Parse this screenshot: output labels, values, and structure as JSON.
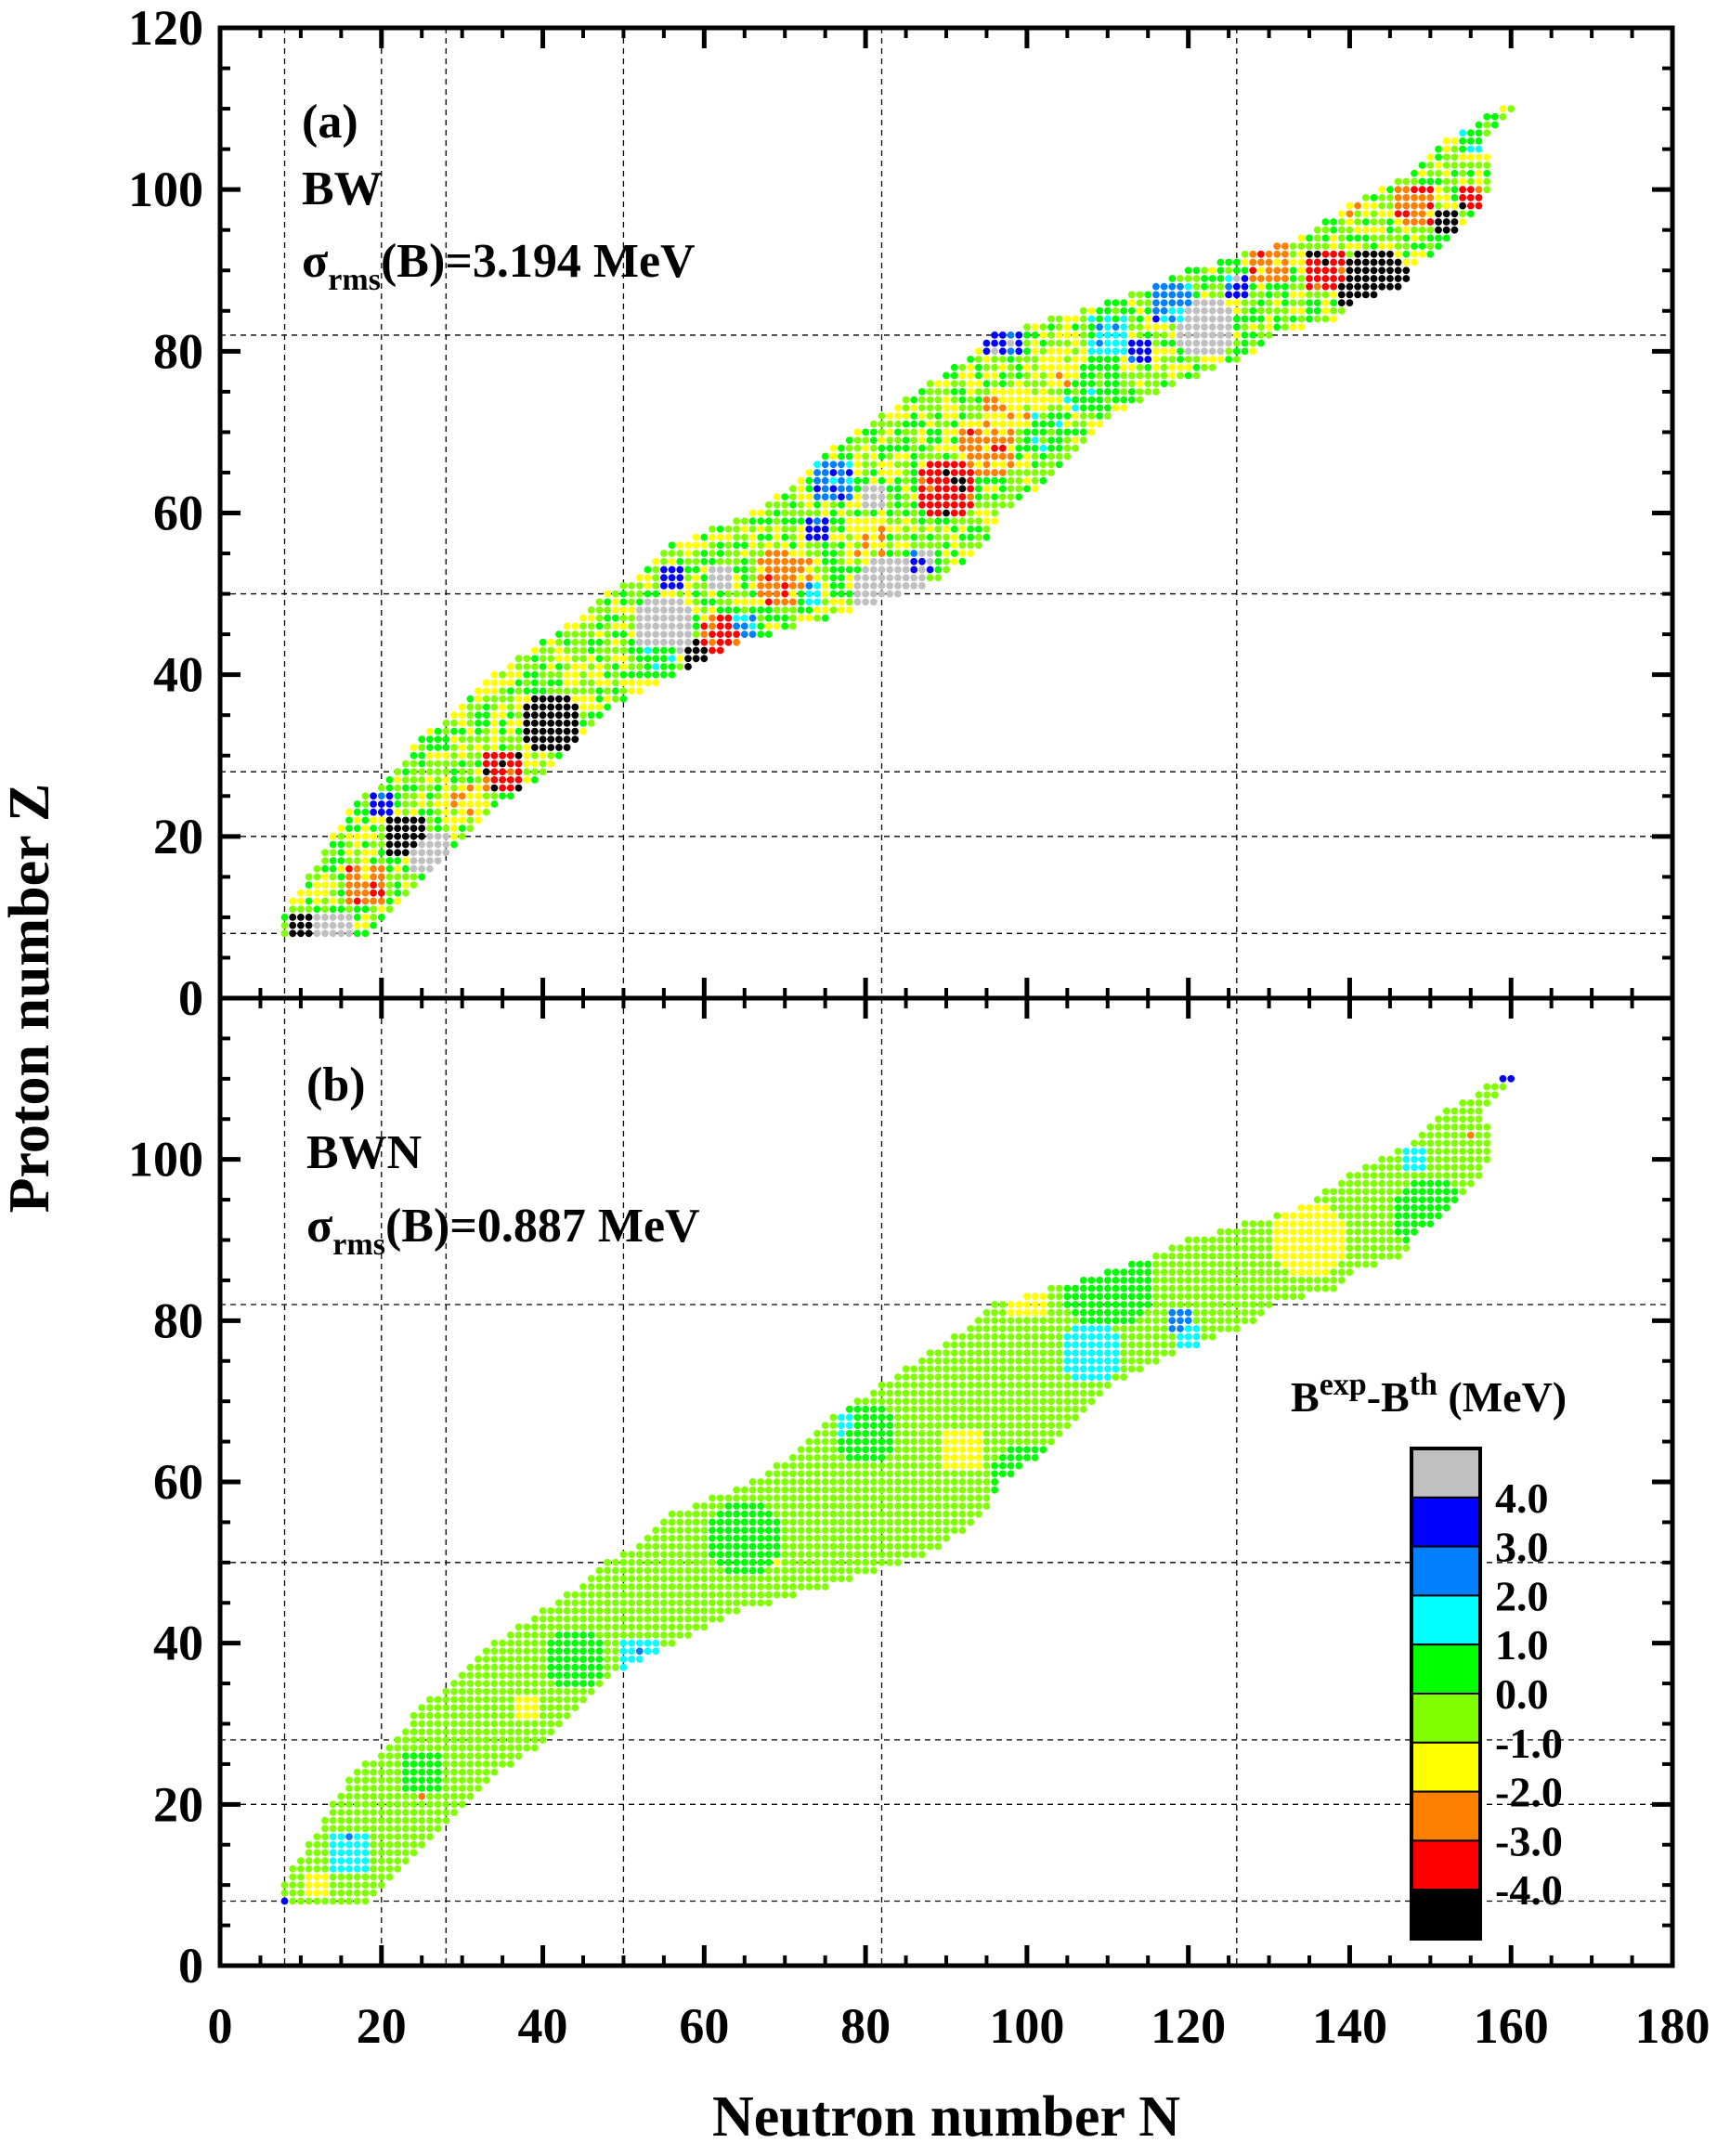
{
  "chart_data": {
    "type": "scatter",
    "xlabel": "Neutron number N",
    "ylabel": "Proton number Z",
    "xlim": [
      0,
      180
    ],
    "x_ticks": [
      "0",
      "20",
      "40",
      "60",
      "80",
      "100",
      "120",
      "140",
      "160",
      "180"
    ],
    "panels": [
      {
        "label": "(a)",
        "model": "BW",
        "sigma_symbol": "σ",
        "sigma_sub": "rms",
        "sigma_rest": "(B)=3.194 MeV",
        "ylim": [
          0,
          120
        ],
        "y_ticks": [
          "0",
          "20",
          "40",
          "60",
          "80",
          "100",
          "120"
        ],
        "base_value": -0.5,
        "noise": 1.2,
        "patches": [
          {
            "n": 10,
            "z": 9,
            "r": 2,
            "v": -5
          },
          {
            "n": 23,
            "z": 20,
            "r": 3,
            "v": -5
          },
          {
            "n": 41,
            "z": 34,
            "r": 4,
            "v": -5
          },
          {
            "n": 60,
            "z": 42,
            "r": 2.5,
            "v": -5
          },
          {
            "n": 143,
            "z": 88,
            "r": 5,
            "v": -5
          },
          {
            "n": 152,
            "z": 96,
            "r": 2,
            "v": -5
          },
          {
            "n": 35,
            "z": 28,
            "r": 3,
            "v": -3.5
          },
          {
            "n": 63,
            "z": 44,
            "r": 4,
            "v": -3.5
          },
          {
            "n": 90,
            "z": 63,
            "r": 4,
            "v": -3.5
          },
          {
            "n": 137,
            "z": 90,
            "r": 3,
            "v": -3.5
          },
          {
            "n": 155,
            "z": 99,
            "r": 2,
            "v": -3.5
          },
          {
            "n": 70,
            "z": 52,
            "r": 4,
            "v": -2.5
          },
          {
            "n": 95,
            "z": 68,
            "r": 4,
            "v": -2.5
          },
          {
            "n": 130,
            "z": 91,
            "r": 3,
            "v": -2.5
          },
          {
            "n": 148,
            "z": 98,
            "r": 3,
            "v": -2.5
          },
          {
            "n": 18,
            "z": 14,
            "r": 3,
            "v": -2.5
          },
          {
            "n": 98,
            "z": 72,
            "r": 4,
            "v": -1.5
          },
          {
            "n": 105,
            "z": 78,
            "r": 3,
            "v": -1.5
          },
          {
            "n": 30,
            "z": 24,
            "r": 3,
            "v": -1.5
          },
          {
            "n": 80,
            "z": 57,
            "r": 3,
            "v": -1.5
          },
          {
            "n": 140,
            "z": 97,
            "r": 2,
            "v": -1.5
          },
          {
            "n": 14,
            "z": 8,
            "r": 3,
            "v": 5
          },
          {
            "n": 26,
            "z": 18,
            "r": 3,
            "v": 5
          },
          {
            "n": 50,
            "z": 32,
            "r": 3,
            "v": 5
          },
          {
            "n": 55,
            "z": 46,
            "r": 4,
            "v": 5
          },
          {
            "n": 83,
            "z": 50,
            "r": 5,
            "v": 5
          },
          {
            "n": 122,
            "z": 83,
            "r": 4,
            "v": 5
          },
          {
            "n": 81,
            "z": 62,
            "r": 2,
            "v": 5
          },
          {
            "n": 62,
            "z": 52,
            "r": 2,
            "v": 5
          },
          {
            "n": 20,
            "z": 24,
            "r": 2,
            "v": 3.5
          },
          {
            "n": 74,
            "z": 58,
            "r": 2,
            "v": 3.5
          },
          {
            "n": 114,
            "z": 80,
            "r": 2,
            "v": 3.5
          },
          {
            "n": 87,
            "z": 54,
            "r": 2,
            "v": 3.5
          },
          {
            "n": 97,
            "z": 82,
            "r": 3,
            "v": 3.5
          },
          {
            "n": 126,
            "z": 88,
            "r": 2,
            "v": 3.5
          },
          {
            "n": 56,
            "z": 52,
            "r": 2,
            "v": 3.5
          },
          {
            "n": 76,
            "z": 64,
            "r": 3,
            "v": 2.5
          },
          {
            "n": 118,
            "z": 86,
            "r": 3,
            "v": 2.5
          },
          {
            "n": 45,
            "z": 28,
            "r": 2,
            "v": 2.5
          },
          {
            "n": 65,
            "z": 46,
            "r": 2,
            "v": 2.5
          },
          {
            "n": 73,
            "z": 50,
            "r": 2,
            "v": 1.5
          },
          {
            "n": 110,
            "z": 82,
            "r": 3,
            "v": 1.5
          },
          {
            "n": 60,
            "z": 32,
            "r": 2,
            "v": 1.5
          },
          {
            "n": 108,
            "z": 76,
            "r": 4,
            "v": 0.5
          },
          {
            "n": 102,
            "z": 70,
            "r": 3,
            "v": 0.5
          },
          {
            "n": 125,
            "z": 90,
            "r": 2,
            "v": 0.5
          },
          {
            "n": 54,
            "z": 42,
            "r": 3,
            "v": 0.5
          },
          {
            "n": 156,
            "z": 107,
            "r": 3,
            "v": 0.5
          }
        ]
      },
      {
        "label": "(b)",
        "model": "BWN",
        "sigma_symbol": "σ",
        "sigma_sub": "rms",
        "sigma_rest": "(B)=0.887 MeV",
        "ylim": [
          0,
          120
        ],
        "y_ticks": [
          "0",
          "20",
          "40",
          "60",
          "80",
          "100"
        ],
        "base_value": -0.5,
        "noise": 0.5,
        "patches": [
          {
            "n": 110,
            "z": 85,
            "r": 6,
            "v": 0.5
          },
          {
            "n": 150,
            "z": 93,
            "r": 5,
            "v": 0.5
          },
          {
            "n": 65,
            "z": 53,
            "r": 5,
            "v": 0.5
          },
          {
            "n": 44,
            "z": 38,
            "r": 4,
            "v": 0.5
          },
          {
            "n": 100,
            "z": 60,
            "r": 5,
            "v": 0.5
          },
          {
            "n": 80,
            "z": 66,
            "r": 4,
            "v": 0.5
          },
          {
            "n": 25,
            "z": 24,
            "r": 3,
            "v": 0.5
          },
          {
            "n": 16,
            "z": 16,
            "r": 1,
            "v": 2.5
          },
          {
            "n": 119,
            "z": 80,
            "r": 1.5,
            "v": 2.5
          },
          {
            "n": 52,
            "z": 39,
            "r": 1,
            "v": 2.5
          },
          {
            "n": 52,
            "z": 38,
            "r": 3,
            "v": 1.5
          },
          {
            "n": 108,
            "z": 76,
            "r": 4,
            "v": 1.5
          },
          {
            "n": 120,
            "z": 78,
            "r": 2,
            "v": 1.5
          },
          {
            "n": 16,
            "z": 14,
            "r": 3,
            "v": 1.5
          },
          {
            "n": 37,
            "z": 20,
            "r": 2,
            "v": 1.5
          },
          {
            "n": 78,
            "z": 67,
            "r": 2,
            "v": 1.5
          },
          {
            "n": 148,
            "z": 100,
            "r": 2,
            "v": 1.5
          },
          {
            "n": 135,
            "z": 90,
            "r": 5,
            "v": -1.5
          },
          {
            "n": 92,
            "z": 64,
            "r": 3,
            "v": -1.5
          },
          {
            "n": 38,
            "z": 32,
            "r": 2,
            "v": -1.5
          },
          {
            "n": 12,
            "z": 10,
            "r": 2,
            "v": -1.5
          },
          {
            "n": 69,
            "z": 50,
            "r": 1,
            "v": -1.5
          },
          {
            "n": 60,
            "z": 40,
            "r": 1,
            "v": -1.5
          },
          {
            "n": 100,
            "z": 83,
            "r": 3,
            "v": -1.5
          },
          {
            "n": 155,
            "z": 103,
            "r": 1,
            "v": -2.5
          },
          {
            "n": 25,
            "z": 21,
            "r": 1,
            "v": -2.5
          },
          {
            "n": 160,
            "z": 110,
            "r": 1.2,
            "v": 3.5
          },
          {
            "n": 8,
            "z": 8,
            "r": 0.8,
            "v": 3.5
          }
        ]
      }
    ],
    "nuclide_band_rows_Z_Nmin_Nmax": [
      [
        8,
        8,
        18
      ],
      [
        10,
        8,
        20
      ],
      [
        12,
        9,
        22
      ],
      [
        16,
        12,
        26
      ],
      [
        20,
        14,
        30
      ],
      [
        24,
        17,
        34
      ],
      [
        28,
        22,
        40
      ],
      [
        32,
        25,
        44
      ],
      [
        36,
        30,
        48
      ],
      [
        40,
        34,
        56
      ],
      [
        44,
        40,
        64
      ],
      [
        48,
        46,
        78
      ],
      [
        50,
        48,
        84
      ],
      [
        52,
        52,
        89
      ],
      [
        56,
        56,
        94
      ],
      [
        60,
        66,
        96
      ],
      [
        64,
        72,
        102
      ],
      [
        68,
        76,
        106
      ],
      [
        72,
        82,
        110
      ],
      [
        76,
        88,
        118
      ],
      [
        80,
        94,
        128
      ],
      [
        82,
        96,
        130
      ],
      [
        84,
        103,
        138
      ],
      [
        86,
        110,
        140
      ],
      [
        88,
        116,
        146
      ],
      [
        90,
        120,
        147
      ],
      [
        94,
        134,
        152
      ],
      [
        98,
        140,
        156
      ],
      [
        102,
        148,
        157
      ],
      [
        106,
        152,
        156
      ],
      [
        110,
        159,
        160
      ]
    ],
    "magic_numbers": [
      8,
      20,
      28,
      50,
      82,
      126
    ],
    "colorbar": {
      "title_main": "B",
      "title_sup1": "exp",
      "title_mid": "-B",
      "title_sup2": "th",
      "title_unit": " (MeV)",
      "bins": [
        {
          "min": 4,
          "color": "#c0c0c0"
        },
        {
          "min": 3,
          "color": "#0000ff"
        },
        {
          "min": 2,
          "color": "#0080ff"
        },
        {
          "min": 1,
          "color": "#00ffff"
        },
        {
          "min": 0,
          "color": "#00ff00"
        },
        {
          "min": -1,
          "color": "#80ff00"
        },
        {
          "min": -2,
          "color": "#ffff00"
        },
        {
          "min": -3,
          "color": "#ff8000"
        },
        {
          "min": -4,
          "color": "#ff0000"
        },
        {
          "min": -999,
          "color": "#000000"
        }
      ],
      "tick_labels": [
        "4.0",
        "3.0",
        "2.0",
        "1.0",
        "0.0",
        "-1.0",
        "-2.0",
        "-3.0",
        "-4.0"
      ]
    }
  }
}
